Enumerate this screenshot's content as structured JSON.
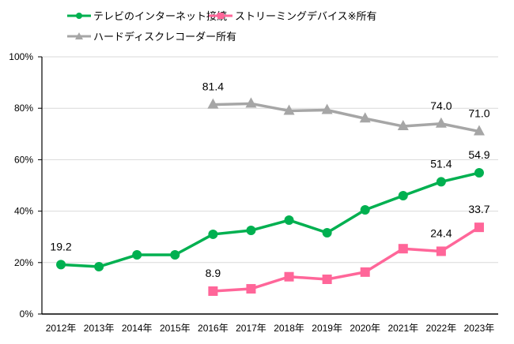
{
  "chart_data": {
    "type": "line",
    "title": "",
    "xlabel": "",
    "ylabel": "",
    "ylim": [
      0,
      100
    ],
    "y_tick_labels": [
      "0%",
      "20%",
      "40%",
      "60%",
      "80%",
      "100%"
    ],
    "y_ticks": [
      0,
      20,
      40,
      60,
      80,
      100
    ],
    "grid": true,
    "legend_position": "top",
    "categories": [
      "2012年",
      "2013年",
      "2014年",
      "2015年",
      "2016年",
      "2017年",
      "2018年",
      "2019年",
      "2020年",
      "2021年",
      "2022年",
      "2023年"
    ],
    "series": [
      {
        "name": "テレビのインターネット接続",
        "color": "#00B050",
        "marker": "circle",
        "values": [
          19.2,
          18.4,
          23.0,
          23.0,
          31.0,
          32.5,
          36.5,
          31.6,
          40.5,
          46.0,
          51.4,
          54.9
        ],
        "data_labels": {
          "0": "19.2",
          "10": "51.4",
          "11": "54.9"
        }
      },
      {
        "name": "ストリーミングデバイス※所有",
        "color": "#FF6699",
        "marker": "square",
        "values": [
          null,
          null,
          null,
          null,
          8.9,
          9.8,
          14.5,
          13.5,
          16.3,
          25.4,
          24.4,
          33.7
        ],
        "data_labels": {
          "4": "8.9",
          "10": "24.4",
          "11": "33.7"
        }
      },
      {
        "name": "ハードディスクレコーダー所有",
        "color": "#A6A6A6",
        "marker": "triangle",
        "values": [
          null,
          null,
          null,
          null,
          81.4,
          81.8,
          79.0,
          79.3,
          76.0,
          73.0,
          74.0,
          71.0
        ],
        "data_labels": {
          "4": "81.4",
          "10": "74.0",
          "11": "71.0"
        }
      }
    ]
  }
}
